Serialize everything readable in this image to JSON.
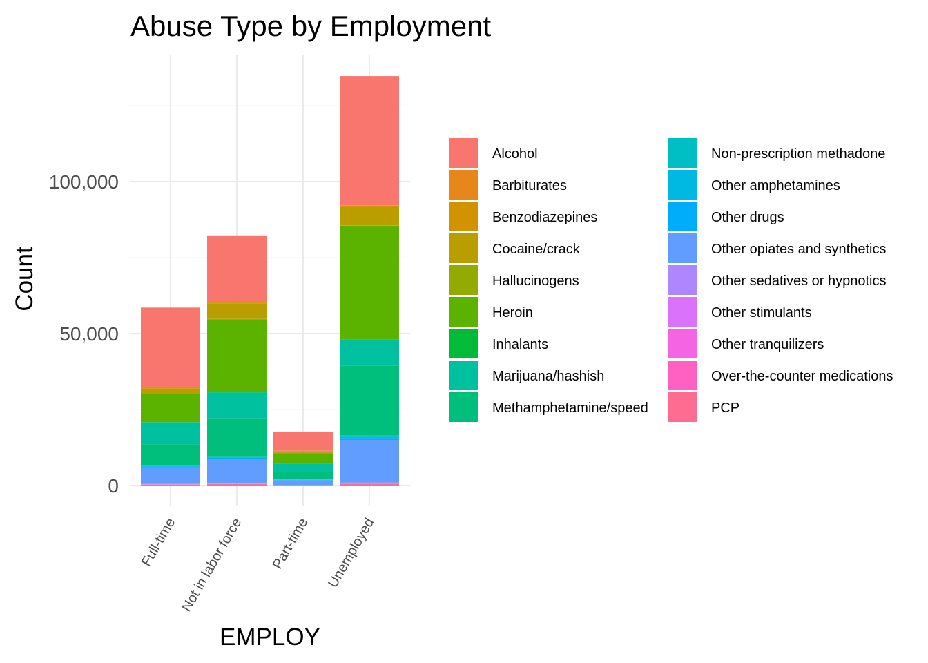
{
  "chart_data": {
    "type": "bar",
    "stacked": true,
    "title": "Abuse Type by Employment",
    "xlabel": "EMPLOY",
    "ylabel": "Count",
    "categories": [
      "Full-time",
      "Not in labor force",
      "Part-time",
      "Unemployed"
    ],
    "ylim": [
      0,
      140000
    ],
    "y_ticks": [
      0,
      50000,
      100000
    ],
    "y_tick_labels": [
      "0",
      "50,000",
      "100,000"
    ],
    "grid": true,
    "legend_position": "right",
    "legend_columns": 2,
    "series": [
      {
        "name": "Alcohol",
        "color": "#F8766D",
        "values": [
          26200,
          22000,
          6200,
          42500
        ]
      },
      {
        "name": "Barbiturates",
        "color": "#E58700",
        "values": [
          100,
          100,
          30,
          150
        ]
      },
      {
        "name": "Benzodiazepines",
        "color": "#C99800",
        "values": [
          400,
          400,
          100,
          500
        ]
      },
      {
        "name": "Cocaine/crack",
        "color": "#A3A500",
        "values": [
          1700,
          5000,
          600,
          6000
        ]
      },
      {
        "name": "Hallucinogens",
        "color": "#6BB100",
        "values": [
          100,
          100,
          50,
          100
        ]
      },
      {
        "name": "Heroin",
        "color": "#00BA38",
        "values": [
          9200,
          24000,
          3500,
          37500
        ]
      },
      {
        "name": "Inhalants",
        "color": "#00BF7D",
        "values": [
          50,
          100,
          20,
          100
        ]
      },
      {
        "name": "Marijuana/hashish",
        "color": "#00C0AF",
        "values": [
          7200,
          8500,
          2800,
          8500
        ]
      },
      {
        "name": "Methamphetamine/speed",
        "color": "#00BCD8",
        "values": [
          7000,
          12500,
          2300,
          23000
        ]
      },
      {
        "name": "Non-prescription methadone",
        "color": "#00B0F6",
        "values": [
          100,
          200,
          50,
          400
        ]
      },
      {
        "name": "Other amphetamines",
        "color": "#619CFF",
        "values": [
          200,
          300,
          100,
          400
        ]
      },
      {
        "name": "Other drugs",
        "color": "#B983FF",
        "values": [
          300,
          400,
          100,
          600
        ]
      },
      {
        "name": "Other opiates and synthetics",
        "color": "#E76BF3",
        "values": [
          5500,
          8000,
          1600,
          14000
        ]
      },
      {
        "name": "Other sedatives or hypnotics",
        "color": "#FD61D1",
        "values": [
          100,
          100,
          40,
          200
        ]
      },
      {
        "name": "Other stimulants",
        "color": "#FF67A4",
        "values": [
          50,
          50,
          20,
          100
        ]
      },
      {
        "name": "Other tranquilizers",
        "color": "#F8766D",
        "values": [
          30,
          30,
          10,
          50
        ]
      },
      {
        "name": "Over-the-counter medications",
        "color": "#E58700",
        "values": [
          30,
          30,
          10,
          50
        ]
      },
      {
        "name": "PCP",
        "color": "#FF6C91",
        "values": [
          300,
          500,
          100,
          600
        ]
      }
    ]
  },
  "legend_colors": {
    "Alcohol": "#F8766D",
    "Barbiturates": "#E7861B",
    "Benzodiazepines": "#D39200",
    "Cocaine/crack": "#BA9E00",
    "Hallucinogens": "#93AA00",
    "Heroin": "#5BB300",
    "Inhalants": "#00BA38",
    "Marijuana/hashish": "#00C19F",
    "Methamphetamine/speed": "#00BF7D",
    "Non-prescription methadone": "#00BFC4",
    "Other amphetamines": "#00B9E3",
    "Other drugs": "#00ADFA",
    "Other opiates and synthetics": "#619CFF",
    "Other sedatives or hypnotics": "#AE87FF",
    "Other stimulants": "#DB72FB",
    "Other tranquilizers": "#F564E3",
    "Over-the-counter medications": "#FF61C3",
    "PCP": "#FF6C91"
  }
}
